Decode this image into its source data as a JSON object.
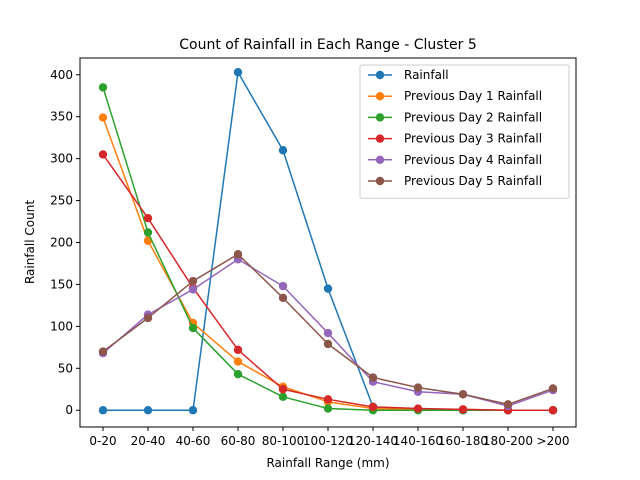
{
  "chart_data": {
    "type": "line",
    "title": "Count of Rainfall in Each Range - Cluster 5",
    "xlabel": "Rainfall Range (mm)",
    "ylabel": "Rainfall Count",
    "categories": [
      "0-20",
      "20-40",
      "40-60",
      "60-80",
      "80-100",
      "100-120",
      "120-140",
      "140-160",
      "160-180",
      "180-200",
      ">200"
    ],
    "ylim": [
      -20,
      420
    ],
    "yticks": [
      0,
      50,
      100,
      150,
      200,
      250,
      300,
      350,
      400
    ],
    "grid": false,
    "legend_position": "upper right",
    "series": [
      {
        "name": "Rainfall",
        "color": "#1f77b4",
        "values": [
          0,
          0,
          0,
          403,
          310,
          145,
          4,
          1,
          0,
          0,
          0
        ]
      },
      {
        "name": "Previous Day 1 Rainfall",
        "color": "#ff7f0e",
        "values": [
          349,
          202,
          104,
          58,
          28,
          10,
          2,
          1,
          1,
          0,
          0
        ]
      },
      {
        "name": "Previous Day 2 Rainfall",
        "color": "#2ca02c",
        "values": [
          385,
          212,
          98,
          43,
          16,
          2,
          0,
          0,
          0,
          0,
          0
        ]
      },
      {
        "name": "Previous Day 3 Rainfall",
        "color": "#d62728",
        "values": [
          305,
          229,
          146,
          72,
          25,
          13,
          4,
          2,
          1,
          0,
          0
        ]
      },
      {
        "name": "Previous Day 4 Rainfall",
        "color": "#9467bd",
        "values": [
          68,
          114,
          144,
          180,
          148,
          92,
          34,
          22,
          19,
          5,
          24
        ]
      },
      {
        "name": "Previous Day 5 Rainfall",
        "color": "#8c564b",
        "values": [
          70,
          110,
          154,
          186,
          134,
          79,
          39,
          27,
          19,
          7,
          26
        ]
      }
    ]
  }
}
